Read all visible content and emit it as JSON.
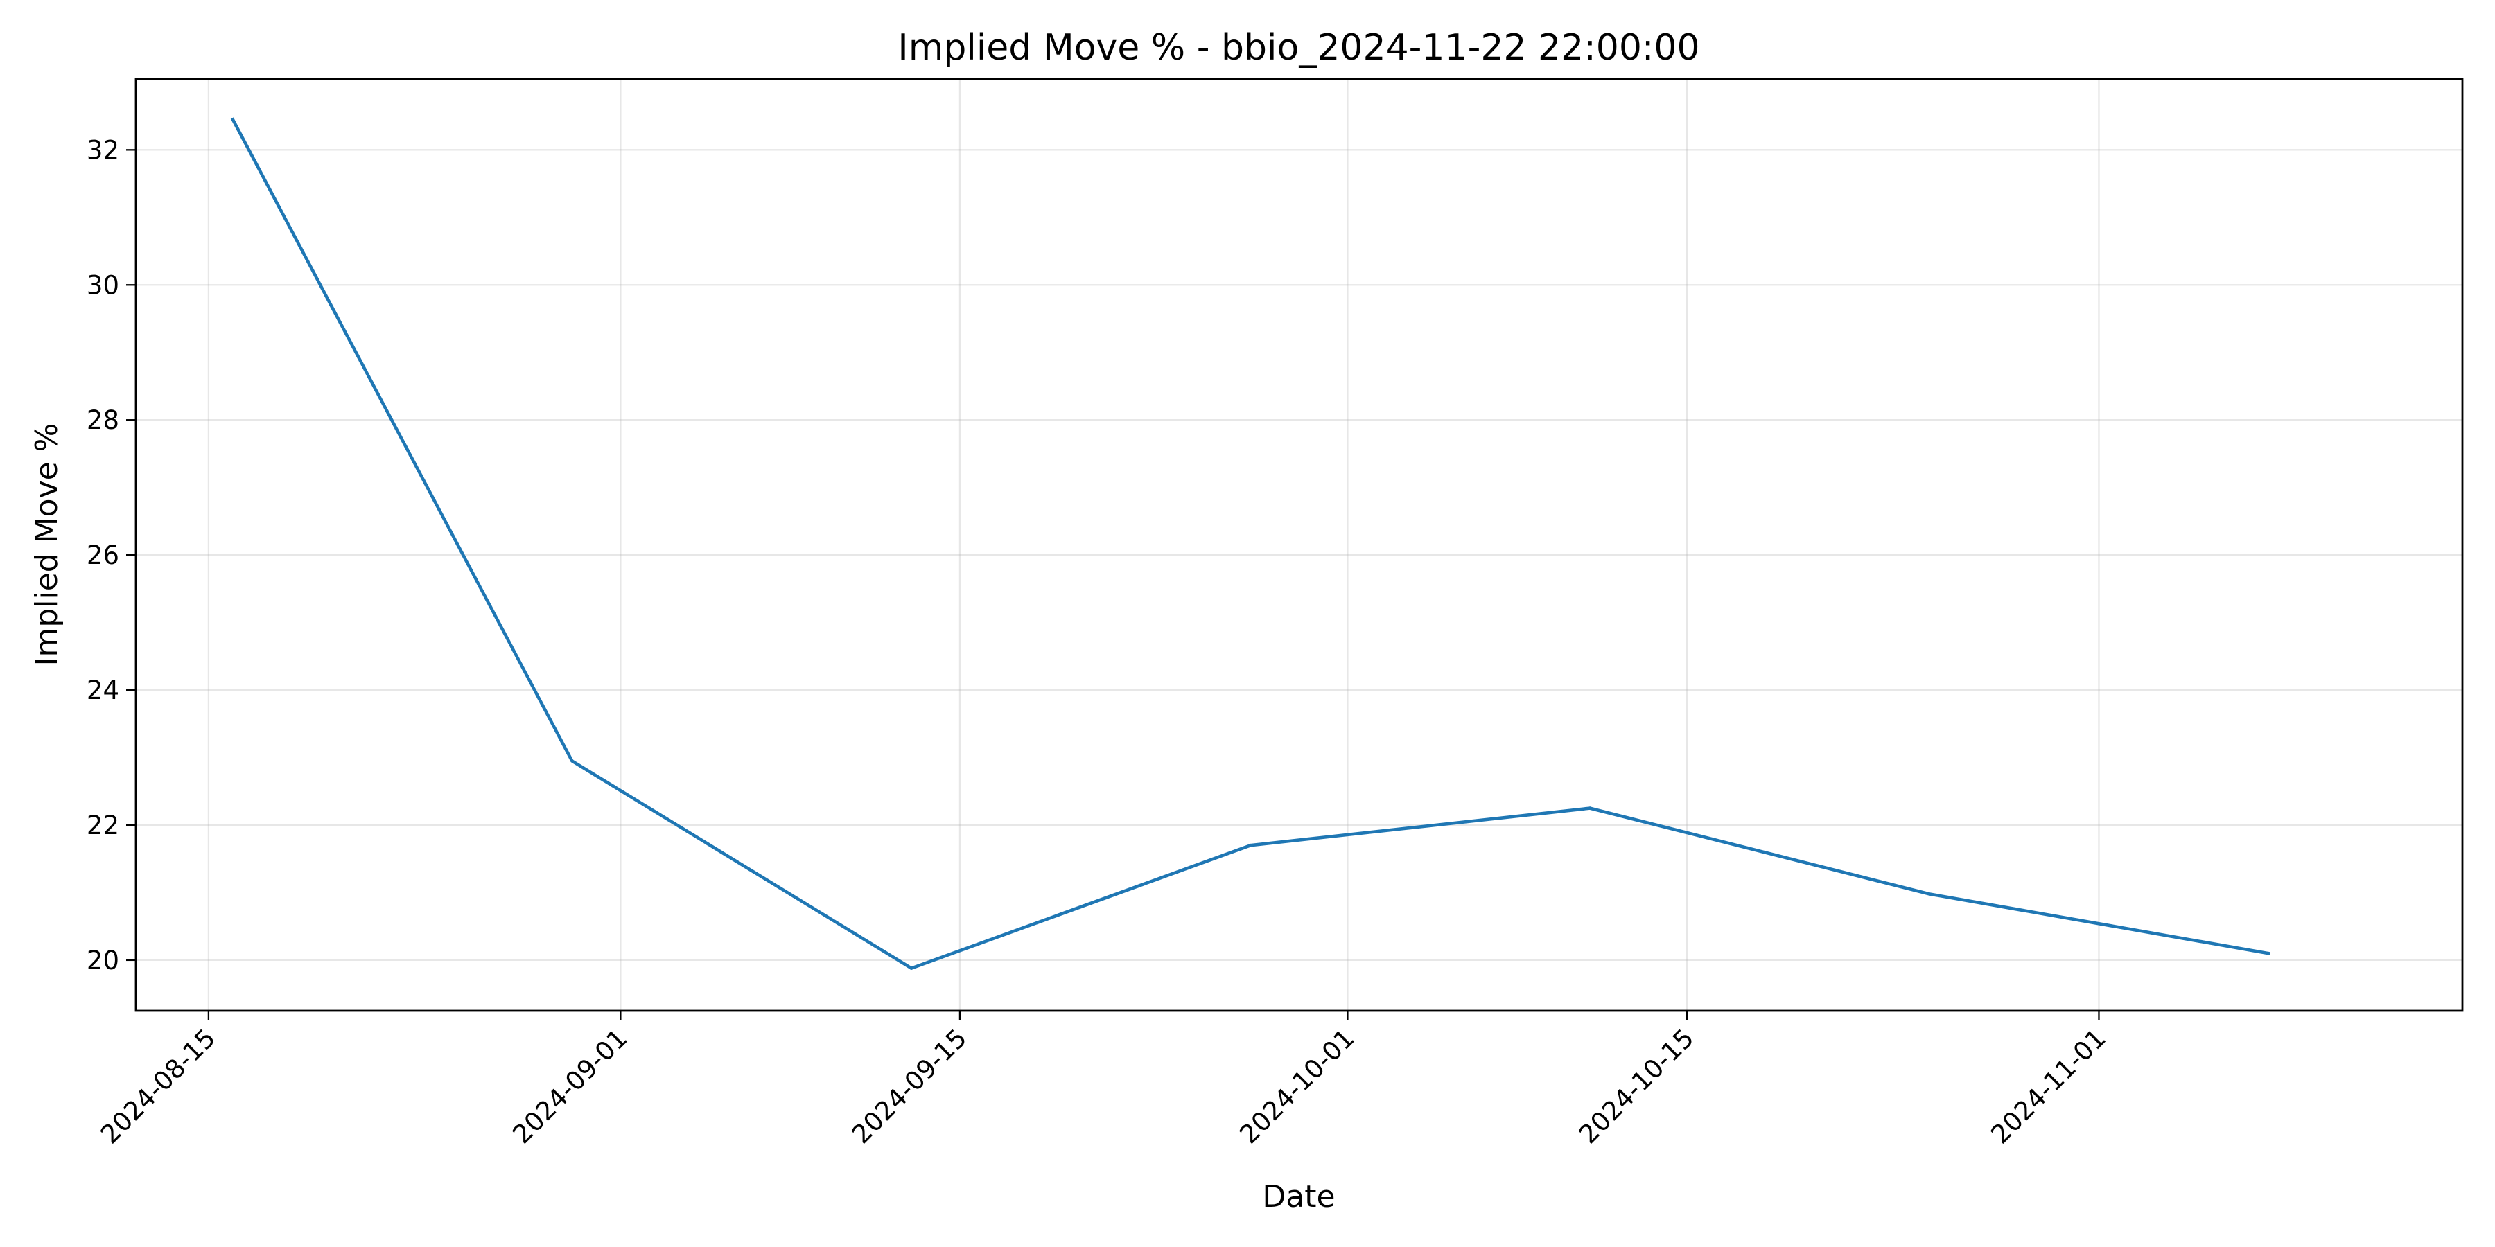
{
  "chart_data": {
    "type": "line",
    "title": "Implied Move % - bbio_2024-11-22 22:00:00",
    "xlabel": "Date",
    "ylabel": "Implied Move %",
    "x_is_date": true,
    "xlim": [
      "2024-08-12",
      "2024-11-16"
    ],
    "ylim": [
      19.25,
      33.05
    ],
    "xticks": [
      "2024-08-15",
      "2024-09-01",
      "2024-09-15",
      "2024-10-01",
      "2024-10-15",
      "2024-11-01"
    ],
    "yticks": [
      20,
      22,
      24,
      26,
      28,
      30,
      32
    ],
    "grid": true,
    "legend": "none",
    "series": [
      {
        "color": "#1f77b4",
        "x": [
          "2024-08-16",
          "2024-08-30",
          "2024-09-13",
          "2024-09-27",
          "2024-10-11",
          "2024-10-25",
          "2024-11-08"
        ],
        "y": [
          32.45,
          22.95,
          19.88,
          21.7,
          22.25,
          20.98,
          20.1
        ]
      }
    ]
  }
}
